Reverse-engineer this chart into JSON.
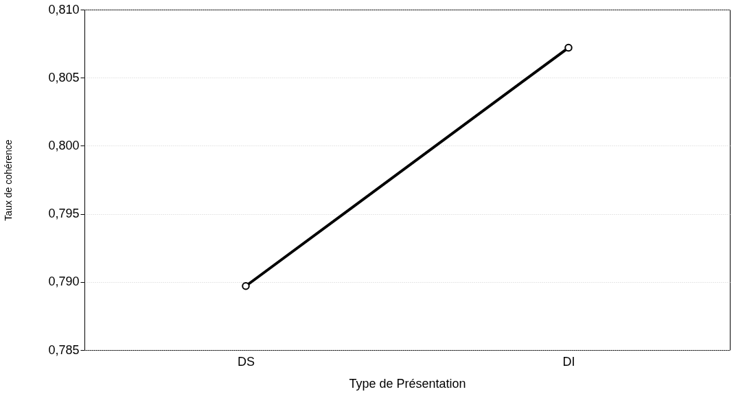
{
  "chart_data": {
    "type": "line",
    "xlabel": "Type de Présentation",
    "ylabel": "Taux de cohérence",
    "categories": [
      "DS",
      "DI"
    ],
    "series": [
      {
        "color": "#000000",
        "values": [
          0.7897,
          0.8072
        ]
      }
    ],
    "ylim": [
      0.785,
      0.81
    ],
    "yticks": [
      {
        "value": 0.785,
        "label": "0,785"
      },
      {
        "value": 0.79,
        "label": "0,790"
      },
      {
        "value": 0.795,
        "label": "0,795"
      },
      {
        "value": 0.8,
        "label": "0,800"
      },
      {
        "value": 0.805,
        "label": "0,805"
      },
      {
        "value": 0.81,
        "label": "0,810"
      }
    ],
    "grid": "y",
    "marker": "circle",
    "line_style": "solid"
  }
}
